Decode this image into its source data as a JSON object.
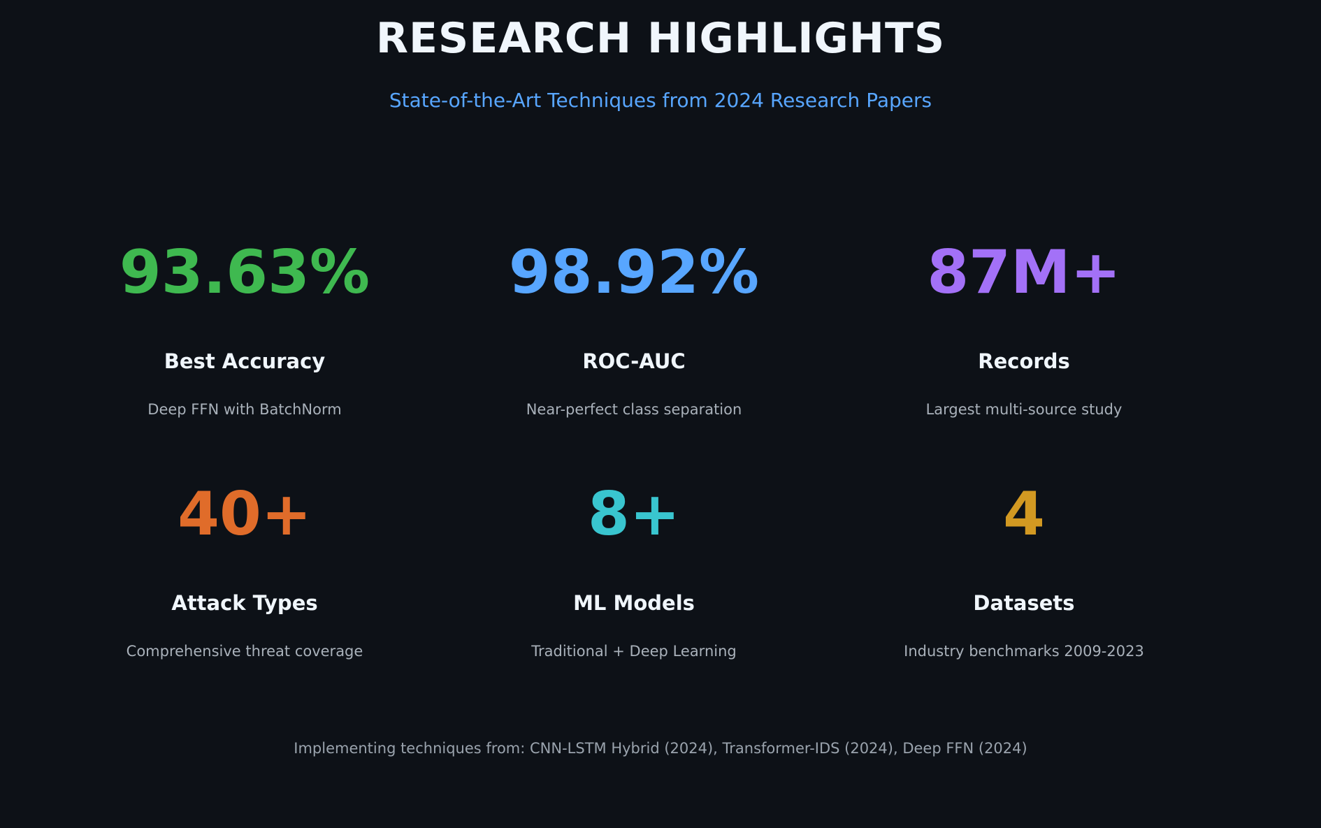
{
  "header": {
    "title": "RESEARCH HIGHLIGHTS",
    "subtitle": "State-of-the-Art Techniques from 2024 Research Papers"
  },
  "stats": [
    {
      "value": "93.63%",
      "label": "Best Accuracy",
      "description": "Deep FFN with BatchNorm",
      "color": "#3fb950"
    },
    {
      "value": "98.92%",
      "label": "ROC-AUC",
      "description": "Near-perfect class separation",
      "color": "#58a6ff"
    },
    {
      "value": "87M+",
      "label": "Records",
      "description": "Largest multi-source study",
      "color": "#a371f7"
    },
    {
      "value": "40+",
      "label": "Attack Types",
      "description": "Comprehensive threat coverage",
      "color": "#e06c2a"
    },
    {
      "value": "8+",
      "label": "ML Models",
      "description": "Traditional + Deep Learning",
      "color": "#39c5cf"
    },
    {
      "value": "4",
      "label": "Datasets",
      "description": "Industry benchmarks 2009-2023",
      "color": "#d29922"
    }
  ],
  "footer": {
    "text": "Implementing techniques from: CNN-LSTM Hybrid (2024), Transformer-IDS (2024), Deep FFN (2024)"
  }
}
